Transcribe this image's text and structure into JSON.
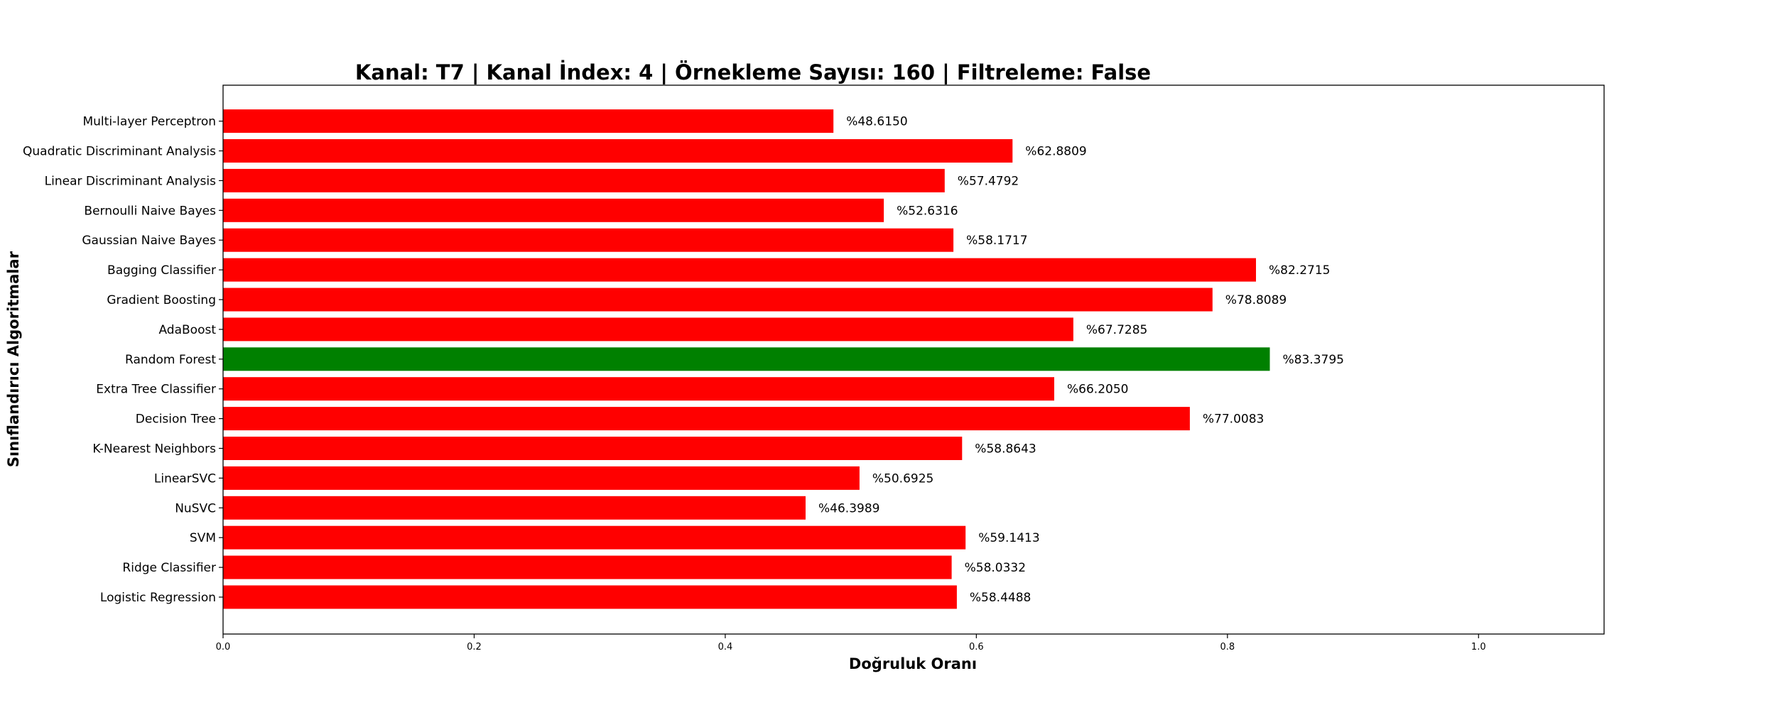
{
  "chart_data": {
    "type": "bar",
    "orientation": "horizontal",
    "title": "Kanal: T7 | Kanal İndex: 4 | Örnekleme Sayısı: 160 | Filtreleme: False",
    "xlabel": "Doğruluk Oranı",
    "ylabel": "Sınıflandırıcı Algoritmalar",
    "xlim": [
      0,
      1.1
    ],
    "xticks": [
      0.0,
      0.2,
      0.4,
      0.6,
      0.8,
      1.0
    ],
    "xtick_labels": [
      "0.0",
      "0.2",
      "0.4",
      "0.6",
      "0.8",
      "1.0"
    ],
    "categories": [
      "Logistic Regression",
      "Ridge Classifier",
      "SVM",
      "NuSVC",
      "LinearSVC",
      "K-Nearest Neighbors",
      "Decision Tree",
      "Extra Tree Classifier",
      "Random Forest",
      "AdaBoost",
      "Gradient Boosting",
      "Bagging Classifier",
      "Gaussian Naive Bayes",
      "Bernoulli Naive Bayes",
      "Linear Discriminant Analysis",
      "Quadratic Discriminant Analysis",
      "Multi-layer Perceptron"
    ],
    "values": [
      0.584488,
      0.580332,
      0.591413,
      0.463989,
      0.506925,
      0.588643,
      0.770083,
      0.66205,
      0.833795,
      0.677285,
      0.788089,
      0.822715,
      0.581717,
      0.526316,
      0.574792,
      0.628809,
      0.48615
    ],
    "value_labels": [
      "%58.4488",
      "%58.0332",
      "%59.1413",
      "%46.3989",
      "%50.6925",
      "%58.8643",
      "%77.0083",
      "%66.2050",
      "%83.3795",
      "%67.7285",
      "%78.8089",
      "%82.2715",
      "%58.1717",
      "%52.6316",
      "%57.4792",
      "%62.8809",
      "%48.6150"
    ],
    "colors": {
      "default": "#ff0000",
      "highlight": "#008000"
    },
    "highlight_index": 8
  }
}
